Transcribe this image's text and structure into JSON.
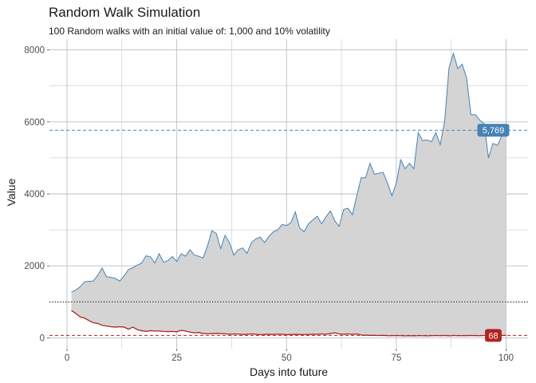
{
  "chart_data": {
    "type": "area",
    "title": "Random Walk Simulation",
    "subtitle": "100 Random walks with an initial value of: 1,000 and 10% volatility",
    "xlabel": "Days into future",
    "ylabel": "Value",
    "xlim": [
      -4,
      105
    ],
    "ylim": [
      -300,
      8300
    ],
    "x_ticks": [
      0,
      25,
      50,
      75,
      100
    ],
    "y_ticks": [
      0,
      2000,
      4000,
      6000,
      8000
    ],
    "y_tick_labels": [
      "0",
      "2000",
      "4000",
      "6000",
      "8000"
    ],
    "grid": true,
    "x": [
      1,
      2,
      3,
      4,
      5,
      6,
      7,
      8,
      9,
      10,
      11,
      12,
      13,
      14,
      15,
      16,
      17,
      18,
      19,
      20,
      21,
      22,
      23,
      24,
      25,
      26,
      27,
      28,
      29,
      30,
      31,
      32,
      33,
      34,
      35,
      36,
      37,
      38,
      39,
      40,
      41,
      42,
      43,
      44,
      45,
      46,
      47,
      48,
      49,
      50,
      51,
      52,
      53,
      54,
      55,
      56,
      57,
      58,
      59,
      60,
      61,
      62,
      63,
      64,
      65,
      66,
      67,
      68,
      69,
      70,
      71,
      72,
      73,
      74,
      75,
      76,
      77,
      78,
      79,
      80,
      81,
      82,
      83,
      84,
      85,
      86,
      87,
      88,
      89,
      90,
      91,
      92,
      93,
      94,
      95,
      96,
      97,
      98,
      99,
      100
    ],
    "series": [
      {
        "role": "max",
        "values": [
          1270,
          1330,
          1420,
          1560,
          1570,
          1580,
          1740,
          1940,
          1700,
          1680,
          1650,
          1580,
          1720,
          1900,
          1950,
          2020,
          2080,
          2280,
          2250,
          2080,
          2340,
          2100,
          2150,
          2260,
          2120,
          2340,
          2270,
          2450,
          2300,
          2270,
          2220,
          2560,
          2980,
          2900,
          2480,
          2850,
          2650,
          2300,
          2450,
          2500,
          2350,
          2650,
          2750,
          2800,
          2650,
          2820,
          2950,
          3000,
          3150,
          3120,
          3200,
          3500,
          3050,
          2950,
          3170,
          3280,
          3380,
          3170,
          3370,
          3530,
          3250,
          3100,
          3570,
          3600,
          3420,
          3950,
          4450,
          4450,
          4850,
          4550,
          4570,
          4600,
          4300,
          3950,
          4300,
          4950,
          4700,
          4850,
          4700,
          5700,
          5480,
          5500,
          5450,
          5700,
          5370,
          6000,
          7500,
          7900,
          7480,
          7600,
          7230,
          6200,
          6200,
          6050,
          5950,
          5000,
          5400,
          5350,
          5600,
          5900
        ]
      },
      {
        "role": "min",
        "values": [
          760,
          680,
          580,
          550,
          480,
          420,
          400,
          350,
          330,
          310,
          300,
          310,
          300,
          240,
          300,
          230,
          200,
          180,
          200,
          190,
          190,
          180,
          175,
          180,
          170,
          210,
          190,
          160,
          140,
          150,
          120,
          115,
          120,
          125,
          120,
          115,
          100,
          110,
          105,
          95,
          100,
          110,
          100,
          90,
          95,
          100,
          95,
          105,
          100,
          90,
          95,
          100,
          95,
          90,
          95,
          100,
          100,
          110,
          100,
          120,
          140,
          110,
          100,
          110,
          100,
          110,
          80,
          75,
          70,
          70,
          65,
          70,
          60,
          60,
          65,
          60,
          55,
          60,
          55,
          60,
          60,
          55,
          60,
          65,
          60,
          65,
          55,
          65,
          60,
          60,
          62,
          65,
          62,
          60,
          65,
          68,
          62,
          65,
          68,
          68
        ]
      }
    ],
    "reference_lines": [
      {
        "role": "max-final",
        "value": 5769,
        "style": "dashed",
        "color": "#4682b4",
        "label": "5,769"
      },
      {
        "role": "initial",
        "value": 1000,
        "style": "dotted",
        "color": "#000000"
      },
      {
        "role": "min-final",
        "value": 68,
        "style": "dashed",
        "color": "#b22222",
        "label": "68"
      }
    ],
    "colors": {
      "band_fill": "#d4d4d4",
      "max_line": "#4682b4",
      "min_line": "#b22222",
      "grid": "#bebebe"
    }
  }
}
